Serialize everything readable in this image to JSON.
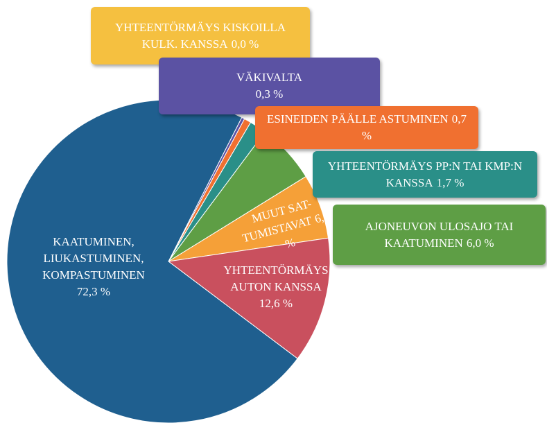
{
  "chart_data": {
    "type": "pie",
    "categories": [
      "YHTEENTÖRMÄYS KISKOILLA KULK. KANSSA",
      "VÄKIVALTA",
      "ESINEIDEN PÄÄLLE ASTUMINEN",
      "YHTEENTÖRMÄYS PP:N TAI KMP:N KANSSA",
      "AJONEUVON ULOSAJO TAI KAATUMINEN",
      "MUUT SAT-TUMISTAVAT",
      "YHTEENTÖRMÄYS AUTON KANSSA",
      "KAATUMINEN, LIUKASTUMINEN, KOMPASTUMINEN"
    ],
    "values": [
      0.0,
      0.3,
      0.7,
      1.7,
      6.0,
      6.5,
      12.6,
      72.3
    ],
    "value_labels": [
      "0,0 %",
      "0,3 %",
      "0,7 %",
      "1,7 %",
      "6,0 %",
      "6,5 %",
      "12,6 %",
      "72,3 %"
    ],
    "colors": [
      "#f5c040",
      "#5b52a3",
      "#f07030",
      "#2a8f88",
      "#5e9e45",
      "#f5a038",
      "#c9505e",
      "#1f5f8f"
    ]
  }
}
